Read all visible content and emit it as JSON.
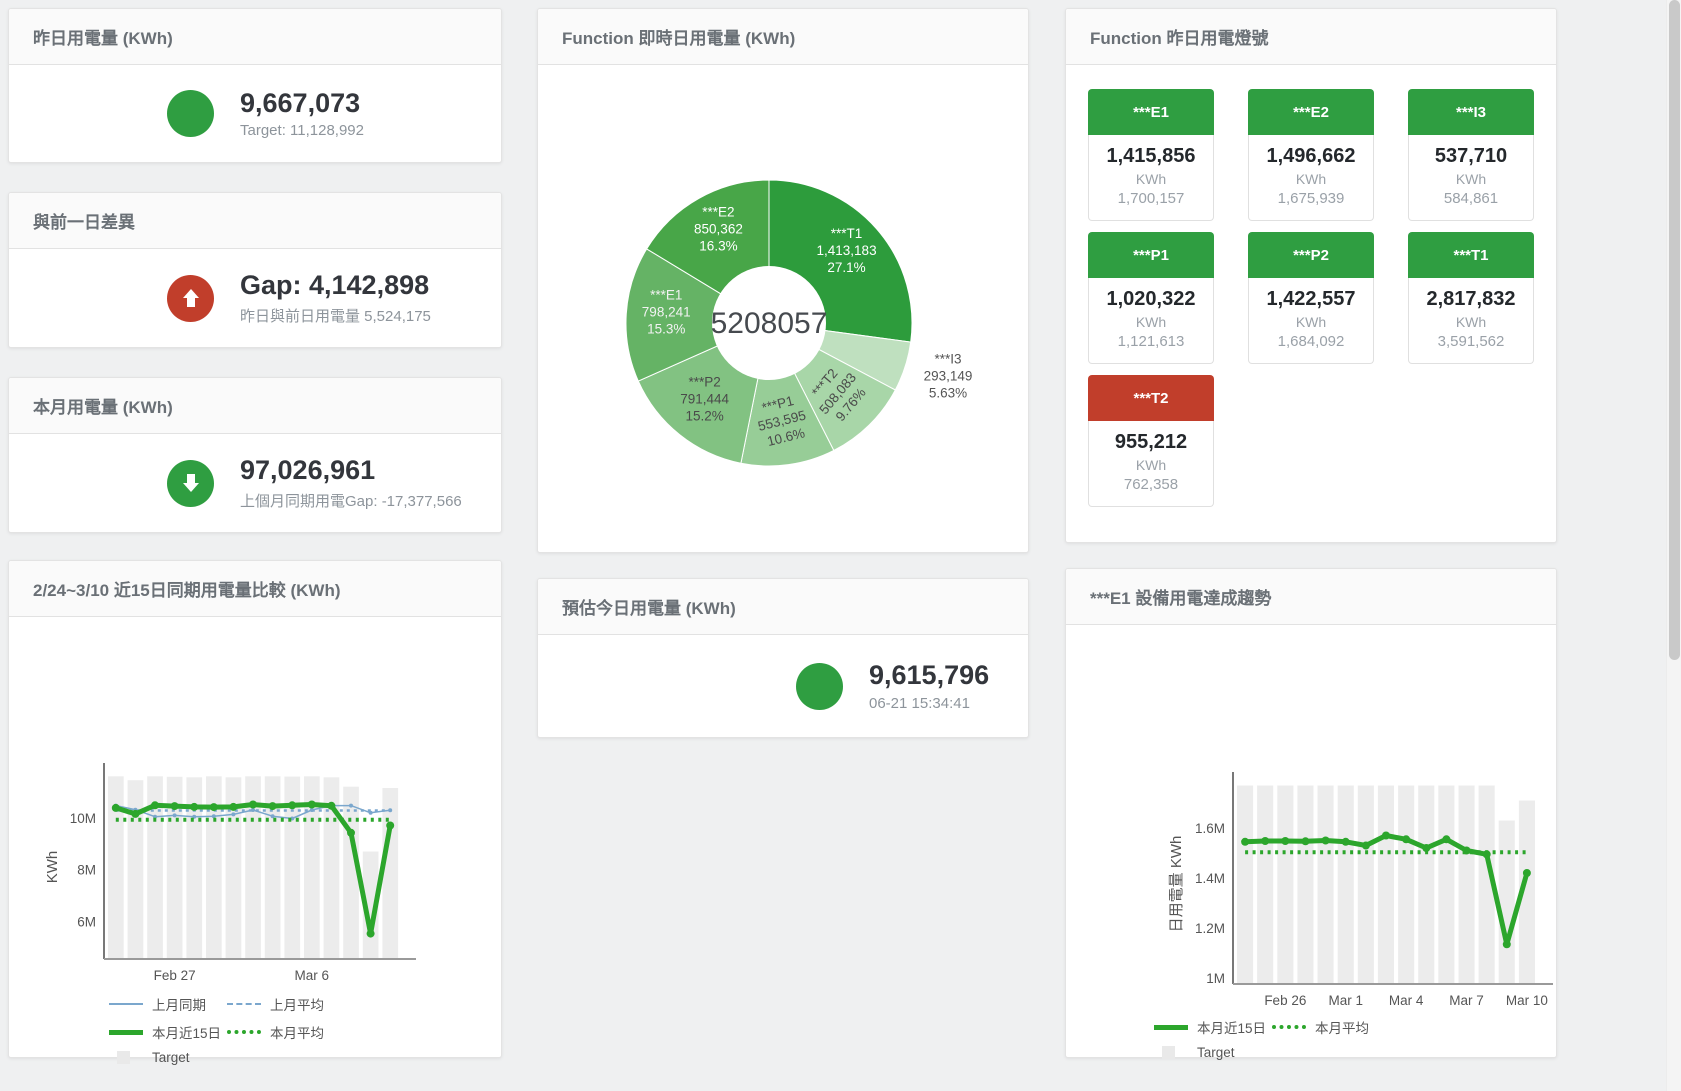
{
  "colors": {
    "green": "#2f9e41",
    "red": "#c13e2b",
    "chart_green": "#2ca62c",
    "chart_blue": "#7ba7cd",
    "bar_gray": "#ececec"
  },
  "panels": {
    "yesterday": {
      "title": "昨日用電量 (KWh)",
      "value": "9,667,073",
      "subtitle": "Target: 11,128,992"
    },
    "day_gap": {
      "title": "與前一日差異",
      "value": "Gap: 4,142,898",
      "subtitle": "昨日與前日用電量 5,524,175"
    },
    "month": {
      "title": "本月用電量 (KWh)",
      "value": "97,026,961",
      "subtitle": "上個月同期用電Gap: -17,377,566"
    },
    "estimate": {
      "title": "預估今日用電量 (KWh)",
      "value": "9,615,796",
      "subtitle": "06-21 15:34:41"
    },
    "realtime_pie": {
      "title": "Function 即時日用電量 (KWh)"
    },
    "compare": {
      "title": "2/24~3/10 近15日同期用電量比較 (KWh)"
    },
    "trend": {
      "title": "***E1 設備用電達成趨勢"
    },
    "lights": {
      "title": "Function 昨日用電燈號",
      "unit": "KWh",
      "tiles": [
        {
          "label": "***E1",
          "value": "1,415,856",
          "target": "1,700,157",
          "status": "green"
        },
        {
          "label": "***E2",
          "value": "1,496,662",
          "target": "1,675,939",
          "status": "green"
        },
        {
          "label": "***I3",
          "value": "537,710",
          "target": "584,861",
          "status": "green"
        },
        {
          "label": "***P1",
          "value": "1,020,322",
          "target": "1,121,613",
          "status": "green"
        },
        {
          "label": "***P2",
          "value": "1,422,557",
          "target": "1,684,092",
          "status": "green"
        },
        {
          "label": "***T1",
          "value": "2,817,832",
          "target": "3,591,562",
          "status": "green"
        },
        {
          "label": "***T2",
          "value": "955,212",
          "target": "762,358",
          "status": "red"
        }
      ]
    }
  },
  "chart_data": [
    {
      "type": "pie",
      "title": "Function 即時日用電量 (KWh)",
      "center_total": "5208057",
      "slices": [
        {
          "name": "***T1",
          "value": 1413183,
          "pct": "27.1%",
          "color": "#2d9c3c",
          "label_color": "#ffffff",
          "rotation": 0
        },
        {
          "name": "***I3",
          "value": 293149,
          "pct": "5.63%",
          "color": "#bfe0bf",
          "label_color": "#555555",
          "rotation": 0,
          "external": true
        },
        {
          "name": "***T2",
          "value": 508083,
          "pct": "9.76%",
          "color": "#a8d6a8",
          "label_color": "#4a4a4a",
          "rotation": -50
        },
        {
          "name": "***P1",
          "value": 553595,
          "pct": "10.6%",
          "color": "#97cd97",
          "label_color": "#4a4a4a",
          "rotation": -14
        },
        {
          "name": "***P2",
          "value": 791444,
          "pct": "15.2%",
          "color": "#82c282",
          "label_color": "#4a4a4a",
          "rotation": 0
        },
        {
          "name": "***E1",
          "value": 798241,
          "pct": "15.3%",
          "color": "#65b365",
          "label_color": "#f2f2f2",
          "rotation": 0
        },
        {
          "name": "***E2",
          "value": 850362,
          "pct": "16.3%",
          "color": "#48a648",
          "label_color": "#ffffff",
          "rotation": 0
        }
      ]
    },
    {
      "type": "line",
      "title": "2/24~3/10 近15日同期用電量比較 (KWh)",
      "ylabel": "KWh",
      "ylim": [
        4550000,
        11650000
      ],
      "yticks": [
        {
          "v": 6000000,
          "label": "6M"
        },
        {
          "v": 8000000,
          "label": "8M"
        },
        {
          "v": 10000000,
          "label": "10M"
        }
      ],
      "categories": [
        "Feb 24",
        "Feb 25",
        "Feb 26",
        "Feb 27",
        "Feb 28",
        "Mar 1",
        "Mar 2",
        "Mar 3",
        "Mar 4",
        "Mar 5",
        "Mar 6",
        "Mar 7",
        "Mar 8",
        "Mar 9",
        "Mar 10"
      ],
      "xticks": [
        {
          "i": 3,
          "label": "Feb 27"
        },
        {
          "i": 10,
          "label": "Mar 6"
        }
      ],
      "grid": false,
      "legend_position": "bottom-left",
      "series": [
        {
          "name": "Target",
          "type": "bar",
          "color": "#ececec",
          "values": [
            11600000,
            11450000,
            11600000,
            11580000,
            11560000,
            11600000,
            11560000,
            11600000,
            11600000,
            11590000,
            11600000,
            11560000,
            11200000,
            8700000,
            11150000
          ]
        },
        {
          "name": "上月同期",
          "type": "line",
          "color": "#7ba7cd",
          "width": 1.5,
          "marker": 2,
          "values": [
            10470000,
            10310000,
            10040000,
            10090000,
            10040000,
            10060000,
            10130000,
            10300000,
            10060000,
            9970000,
            10300000,
            10470000,
            10470000,
            10190000,
            10290000
          ]
        },
        {
          "name": "上月平均",
          "type": "line",
          "color": "#7ba7cd",
          "width": 2.5,
          "dash": "3 4",
          "values": [
            10280000,
            10280000,
            10280000,
            10280000,
            10280000,
            10280000,
            10280000,
            10280000,
            10280000,
            10280000,
            10280000,
            10280000,
            10280000,
            10280000,
            10280000
          ]
        },
        {
          "name": "本月平均",
          "type": "line",
          "color": "#2ca62c",
          "width": 4,
          "dash": "3 4.5",
          "values": [
            9920000,
            9920000,
            9920000,
            9920000,
            9920000,
            9920000,
            9920000,
            9920000,
            9920000,
            9920000,
            9920000,
            9920000,
            9920000,
            9920000,
            9920000
          ]
        },
        {
          "name": "本月近15日",
          "type": "line",
          "color": "#2ca62c",
          "width": 5,
          "marker": 4,
          "values": [
            10380000,
            10150000,
            10480000,
            10450000,
            10420000,
            10410000,
            10420000,
            10510000,
            10450000,
            10480000,
            10510000,
            10460000,
            9420000,
            5530000,
            9700000
          ]
        }
      ],
      "legend_rows": [
        [
          {
            "label": "上月同期",
            "swatch": "solid",
            "color": "#7ba7cd",
            "width": 2
          },
          {
            "label": "上月平均",
            "swatch": "dash",
            "color": "#7ba7cd",
            "width": 2
          }
        ],
        [
          {
            "label": "本月近15日",
            "swatch": "solid",
            "color": "#2ca62c",
            "width": 5
          },
          {
            "label": "本月平均",
            "swatch": "dot",
            "color": "#2ca62c",
            "width": 4
          }
        ],
        [
          {
            "label": "Target",
            "swatch": "box",
            "color": "#e9e9e9"
          }
        ]
      ]
    },
    {
      "type": "line",
      "title": "***E1 設備用電達成趨勢",
      "ylabel": "日用電量 KWh",
      "ylim": [
        976000,
        1776000
      ],
      "yticks": [
        {
          "v": 1000000,
          "label": "1M"
        },
        {
          "v": 1200000,
          "label": "1.2M"
        },
        {
          "v": 1400000,
          "label": "1.4M"
        },
        {
          "v": 1600000,
          "label": "1.6M"
        }
      ],
      "categories": [
        "Feb 24",
        "Feb 25",
        "Feb 26",
        "Feb 27",
        "Feb 28",
        "Mar 1",
        "Mar 2",
        "Mar 3",
        "Mar 4",
        "Mar 5",
        "Mar 6",
        "Mar 7",
        "Mar 8",
        "Mar 9",
        "Mar 10"
      ],
      "xticks": [
        {
          "i": 2,
          "label": "Feb 26"
        },
        {
          "i": 5,
          "label": "Mar 1"
        },
        {
          "i": 8,
          "label": "Mar 4"
        },
        {
          "i": 11,
          "label": "Mar 7"
        },
        {
          "i": 14,
          "label": "Mar 10"
        }
      ],
      "grid": false,
      "legend_position": "bottom-left",
      "series": [
        {
          "name": "Target",
          "type": "bar",
          "color": "#ececec",
          "values": [
            1770000,
            1770000,
            1770000,
            1770000,
            1770000,
            1770000,
            1770000,
            1770000,
            1770000,
            1770000,
            1770000,
            1770000,
            1770000,
            1630000,
            1710000
          ]
        },
        {
          "name": "本月平均",
          "type": "line",
          "color": "#2ca62c",
          "width": 4,
          "dash": "3 4.5",
          "values": [
            1503000,
            1503000,
            1503000,
            1503000,
            1503000,
            1503000,
            1503000,
            1503000,
            1503000,
            1503000,
            1503000,
            1503000,
            1503000,
            1503000,
            1503000
          ]
        },
        {
          "name": "本月近15日",
          "type": "line",
          "color": "#2ca62c",
          "width": 5,
          "marker": 4,
          "values": [
            1545000,
            1548000,
            1548000,
            1547000,
            1550000,
            1545000,
            1530000,
            1570000,
            1555000,
            1520000,
            1555000,
            1510000,
            1495000,
            1135000,
            1420000
          ]
        }
      ],
      "legend_rows": [
        [
          {
            "label": "本月近15日",
            "swatch": "solid",
            "color": "#2ca62c",
            "width": 5
          },
          {
            "label": "本月平均",
            "swatch": "dot",
            "color": "#2ca62c",
            "width": 4
          }
        ],
        [
          {
            "label": "Target",
            "swatch": "box",
            "color": "#e9e9e9"
          }
        ]
      ]
    }
  ]
}
